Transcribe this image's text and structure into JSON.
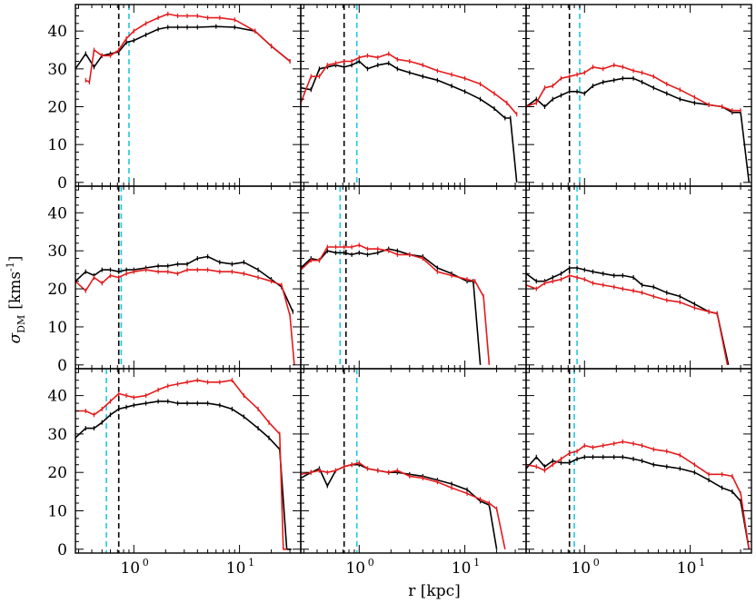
{
  "chart_data": {
    "type": "line",
    "layout": "3x3 grid",
    "xlabel": "r [kpc]",
    "ylabel": "σ_DM [kms^-1]",
    "ylabel_parts": {
      "symbol": "σ",
      "subscript": "DM",
      "unit": "[kms",
      "exponent": "-1",
      "close": "]"
    },
    "x_scale": "log",
    "xlim": [
      0.28,
      38
    ],
    "ylim": [
      -1,
      47
    ],
    "x_tick_labels": [
      {
        "value": 1,
        "base": "10",
        "exp": "0"
      },
      {
        "value": 10,
        "base": "10",
        "exp": "1"
      }
    ],
    "y_ticks": [
      0,
      10,
      20,
      30,
      40
    ],
    "series_colors": {
      "black": "#000000",
      "red": "#e41a1c",
      "dashed_black": "#000000",
      "dashed_cyan": "#1ec8e0"
    },
    "panels": [
      {
        "row": 0,
        "col": 0,
        "black": {
          "x": [
            0.28,
            0.35,
            0.42,
            0.5,
            0.6,
            0.72,
            0.85,
            1.0,
            1.3,
            1.7,
            2.1,
            2.6,
            3.2,
            4.0,
            6.0,
            9.0,
            14.0,
            20.0,
            30.0
          ],
          "y": [
            30,
            34,
            30.5,
            33.5,
            34,
            34.5,
            37,
            37.5,
            39,
            40.5,
            41,
            41,
            41,
            41,
            41.2,
            41,
            40,
            36,
            32
          ]
        },
        "red": {
          "x": [
            0.35,
            0.38,
            0.42,
            0.5,
            0.6,
            0.72,
            0.85,
            1.0,
            1.3,
            1.7,
            2.1,
            2.6,
            3.2,
            4.0,
            5.0,
            6.5,
            9.0,
            14.0,
            20.0,
            30.0
          ],
          "y": [
            27,
            26.5,
            35,
            33.5,
            33.5,
            35,
            38,
            40,
            42,
            43.5,
            44.5,
            44,
            44,
            44,
            43.5,
            43.5,
            43,
            40,
            36,
            32
          ]
        },
        "vlines": {
          "black": 0.72,
          "cyan": 0.9
        }
      },
      {
        "row": 0,
        "col": 1,
        "black": {
          "x": [
            0.28,
            0.35,
            0.42,
            0.5,
            0.6,
            0.72,
            0.85,
            1.0,
            1.2,
            1.5,
            1.9,
            2.3,
            3.0,
            4.0,
            5.5,
            7.5,
            10.0,
            14.0,
            19.0,
            24.0,
            27.0,
            31.0
          ],
          "y": [
            25,
            24.5,
            30,
            30.5,
            31,
            30.5,
            31,
            32,
            30,
            31,
            31.5,
            30,
            29,
            28,
            27,
            25.5,
            24,
            22,
            19.5,
            17,
            17,
            0
          ]
        },
        "red": {
          "x": [
            0.28,
            0.35,
            0.42,
            0.5,
            0.6,
            0.72,
            0.85,
            1.0,
            1.2,
            1.5,
            1.9,
            2.3,
            3.0,
            4.0,
            5.5,
            7.5,
            10.0,
            14.0,
            19.0,
            25.0,
            31.0
          ],
          "y": [
            21,
            28,
            28,
            31,
            31.5,
            32,
            32,
            33,
            33.5,
            33,
            34,
            32.5,
            32,
            31,
            29.5,
            28.5,
            27.5,
            26,
            23.5,
            21,
            18
          ]
        },
        "vlines": {
          "black": 0.72,
          "cyan": 0.95
        }
      },
      {
        "row": 0,
        "col": 2,
        "black": {
          "x": [
            0.28,
            0.35,
            0.42,
            0.5,
            0.6,
            0.72,
            0.85,
            1.0,
            1.2,
            1.5,
            1.9,
            2.3,
            2.9,
            3.5,
            4.5,
            6.0,
            8.0,
            11.0,
            15.0,
            20.0,
            25.0,
            30.0,
            36.0
          ],
          "y": [
            20,
            22,
            20,
            22,
            23,
            24,
            24,
            23.5,
            25.5,
            26.5,
            27,
            27.5,
            27.5,
            26.5,
            25,
            23.5,
            22,
            21,
            20.5,
            20,
            18.5,
            18.5,
            0
          ]
        },
        "red": {
          "x": [
            0.28,
            0.35,
            0.42,
            0.5,
            0.6,
            0.72,
            0.85,
            1.0,
            1.2,
            1.5,
            1.9,
            2.3,
            2.9,
            3.5,
            4.5,
            6.0,
            8.0,
            11.0,
            15.0,
            20.0,
            25.0,
            30.0
          ],
          "y": [
            20,
            21,
            25,
            25.5,
            27.5,
            28,
            28.5,
            29,
            30.5,
            30,
            31,
            30.5,
            29.5,
            29,
            28,
            26,
            24.5,
            22.5,
            20.5,
            20,
            19,
            19
          ]
        },
        "vlines": {
          "black": 0.72,
          "cyan": 0.9
        }
      },
      {
        "row": 1,
        "col": 0,
        "black": {
          "x": [
            0.28,
            0.35,
            0.42,
            0.5,
            0.6,
            0.72,
            0.85,
            1.0,
            1.3,
            1.7,
            2.1,
            2.6,
            3.2,
            4.0,
            5.0,
            6.5,
            8.5,
            11.0,
            15.0,
            20.0,
            25.0,
            32.0
          ],
          "y": [
            22,
            24.5,
            23.5,
            25,
            25,
            24.5,
            25,
            25,
            25.5,
            26,
            26,
            26.5,
            26.5,
            28,
            28.5,
            27,
            26.5,
            27,
            25,
            22.5,
            20.5,
            14
          ]
        },
        "red": {
          "x": [
            0.28,
            0.35,
            0.42,
            0.5,
            0.6,
            0.72,
            0.85,
            1.0,
            1.3,
            1.7,
            2.1,
            2.6,
            3.2,
            4.0,
            5.0,
            6.5,
            8.5,
            11.0,
            15.0,
            20.0,
            25.0,
            30.0,
            33.0
          ],
          "y": [
            22,
            19.5,
            23,
            21.5,
            23.5,
            23,
            24,
            24.5,
            25,
            24.5,
            24.5,
            24,
            25,
            25,
            25,
            24.5,
            24.5,
            24,
            23,
            22,
            21,
            13,
            0
          ]
        },
        "vlines": {
          "black": 0.72,
          "cyan": 0.76
        }
      },
      {
        "row": 1,
        "col": 1,
        "black": {
          "x": [
            0.28,
            0.35,
            0.42,
            0.5,
            0.6,
            0.72,
            0.85,
            1.0,
            1.2,
            1.5,
            1.9,
            2.3,
            3.0,
            4.0,
            5.5,
            7.5,
            10.5,
            12.0,
            14.0
          ],
          "y": [
            25.5,
            28,
            27.5,
            30,
            29.5,
            29.5,
            29,
            29.5,
            29,
            29.5,
            30.5,
            30,
            29,
            28.5,
            25.5,
            24,
            22,
            22,
            0
          ]
        },
        "red": {
          "x": [
            0.28,
            0.35,
            0.42,
            0.5,
            0.6,
            0.72,
            0.85,
            1.0,
            1.2,
            1.5,
            1.9,
            2.3,
            3.0,
            4.0,
            5.5,
            7.5,
            10.5,
            12.5,
            15.0,
            17.0
          ],
          "y": [
            25,
            27.5,
            27.5,
            31,
            31,
            31,
            31,
            31.5,
            30.5,
            30.5,
            30,
            29,
            29,
            28,
            24.5,
            23.5,
            22.5,
            22,
            18,
            0
          ]
        },
        "vlines": {
          "black": 0.75,
          "cyan": 0.66
        }
      },
      {
        "row": 1,
        "col": 2,
        "black": {
          "x": [
            0.28,
            0.35,
            0.42,
            0.5,
            0.6,
            0.72,
            0.85,
            1.0,
            1.2,
            1.5,
            1.9,
            2.3,
            2.9,
            3.5,
            4.5,
            6.0,
            8.0,
            11.0,
            15.0,
            18.0,
            23.0
          ],
          "y": [
            24,
            22,
            22,
            23,
            24,
            25.5,
            25.5,
            25,
            24.5,
            24,
            23.5,
            23.5,
            23,
            21,
            20.5,
            19,
            18,
            16,
            14,
            13.5,
            0
          ]
        },
        "red": {
          "x": [
            0.28,
            0.35,
            0.42,
            0.5,
            0.6,
            0.72,
            0.85,
            1.0,
            1.2,
            1.5,
            1.9,
            2.3,
            2.9,
            3.5,
            4.5,
            6.0,
            8.0,
            11.0,
            15.0,
            18.0,
            22.5
          ],
          "y": [
            21,
            20,
            21.5,
            22,
            22.5,
            23.5,
            23,
            22.5,
            21.5,
            21,
            20.5,
            20,
            19.5,
            19,
            18,
            17,
            16.5,
            15,
            14,
            13.5,
            0
          ]
        },
        "vlines": {
          "black": 0.72,
          "cyan": 0.85
        }
      },
      {
        "row": 2,
        "col": 0,
        "black": {
          "x": [
            0.28,
            0.35,
            0.42,
            0.5,
            0.6,
            0.72,
            0.85,
            1.0,
            1.3,
            1.7,
            2.1,
            2.6,
            3.2,
            4.0,
            5.0,
            6.5,
            8.5,
            11.0,
            15.0,
            19.0,
            24.0,
            28.0,
            31.0
          ],
          "y": [
            29,
            31.5,
            31.5,
            33,
            35,
            36.5,
            37,
            37.5,
            38,
            38.5,
            38.5,
            38,
            38,
            38,
            38,
            37.5,
            36.5,
            34.5,
            31.5,
            29,
            26,
            0,
            0
          ]
        },
        "red": {
          "x": [
            0.28,
            0.35,
            0.42,
            0.5,
            0.6,
            0.72,
            0.85,
            1.0,
            1.3,
            1.7,
            2.1,
            2.6,
            3.2,
            4.0,
            5.0,
            6.5,
            8.5,
            11.0,
            15.0,
            19.0,
            24.0,
            26.0,
            28.0
          ],
          "y": [
            36,
            36,
            35,
            36.5,
            38.5,
            40.5,
            40,
            39.5,
            40,
            41.5,
            42.5,
            43,
            43.5,
            44,
            43.5,
            43.5,
            44,
            40,
            36.5,
            33,
            30,
            0,
            0
          ]
        },
        "vlines": {
          "black": 0.72,
          "cyan": 0.55
        }
      },
      {
        "row": 2,
        "col": 1,
        "black": {
          "x": [
            0.28,
            0.35,
            0.42,
            0.5,
            0.6,
            0.72,
            0.85,
            1.0,
            1.2,
            1.5,
            1.9,
            2.3,
            3.0,
            4.0,
            5.5,
            7.5,
            10.5,
            14.0,
            17.0,
            20.0
          ],
          "y": [
            18.5,
            20,
            21,
            16.5,
            20.5,
            21.5,
            22,
            22,
            21,
            20.5,
            20,
            20,
            19.5,
            19,
            18,
            17,
            15.5,
            12.5,
            11.5,
            0
          ]
        },
        "red": {
          "x": [
            0.28,
            0.35,
            0.42,
            0.5,
            0.6,
            0.72,
            0.85,
            1.0,
            1.2,
            1.5,
            1.9,
            2.3,
            3.0,
            4.0,
            5.5,
            7.5,
            10.5,
            14.0,
            17.0,
            20.0,
            24.0
          ],
          "y": [
            19.5,
            20,
            20.5,
            20,
            20.5,
            21.5,
            22,
            22.5,
            21,
            20.5,
            20,
            20.5,
            19,
            18.5,
            17.5,
            16,
            14.5,
            13,
            12,
            10.5,
            0
          ]
        },
        "vlines": {
          "black": 0.72,
          "cyan": 0.95
        }
      },
      {
        "row": 2,
        "col": 2,
        "black": {
          "x": [
            0.28,
            0.35,
            0.42,
            0.5,
            0.6,
            0.72,
            0.85,
            1.0,
            1.2,
            1.5,
            1.9,
            2.3,
            2.9,
            3.5,
            4.5,
            6.0,
            8.0,
            11.0,
            15.0,
            20.0,
            25.0,
            30.0,
            36.0
          ],
          "y": [
            21,
            24,
            21.5,
            23,
            22.5,
            22.5,
            23.5,
            24,
            24,
            24,
            24,
            24,
            23.5,
            23,
            22,
            21.5,
            21,
            20,
            18,
            16,
            15,
            12.5,
            0
          ]
        },
        "red": {
          "x": [
            0.28,
            0.35,
            0.42,
            0.5,
            0.6,
            0.72,
            0.85,
            1.0,
            1.2,
            1.5,
            1.9,
            2.3,
            2.9,
            3.5,
            4.5,
            6.0,
            8.0,
            11.0,
            15.0,
            20.0,
            25.0,
            30.0,
            36.0
          ],
          "y": [
            22,
            21.5,
            20.5,
            22,
            23.5,
            25,
            25.5,
            27,
            26.5,
            27,
            27.5,
            28,
            27.5,
            27,
            26,
            25.5,
            24.5,
            22,
            19.5,
            19.5,
            19,
            14.5,
            0
          ]
        },
        "vlines": {
          "black": 0.72,
          "cyan": 0.8
        }
      }
    ]
  }
}
